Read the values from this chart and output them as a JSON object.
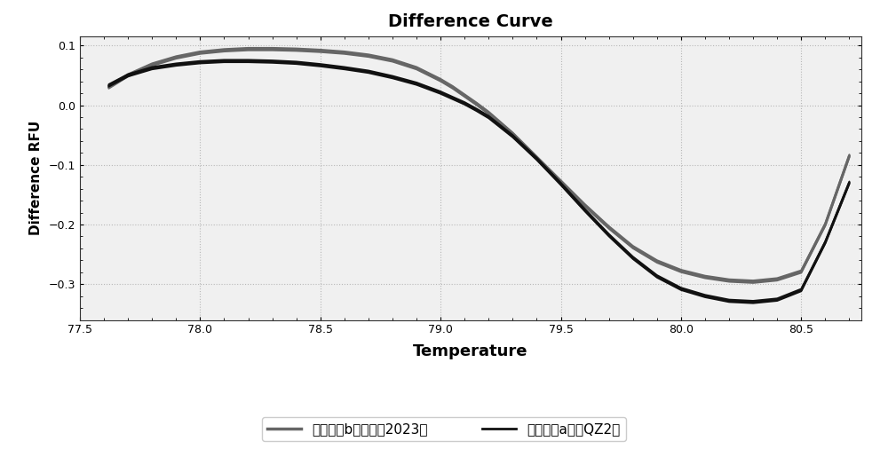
{
  "title": "Difference Curve",
  "xlabel": "Temperature",
  "ylabel": "Difference RFU",
  "xlim": [
    77.5,
    80.75
  ],
  "ylim": [
    -0.36,
    0.115
  ],
  "xticks": [
    77.5,
    78.0,
    78.5,
    79.0,
    79.5,
    80.0,
    80.5
  ],
  "yticks": [
    -0.3,
    -0.2,
    -0.1,
    0.0,
    0.1
  ],
  "background_color": "#ffffff",
  "plot_bg_color": "#f0f0f0",
  "grid_color": "#aaaaaa",
  "legend_labels": [
    "基因型为b，即郑麦2023类",
    "基因型为a，即QZ2类"
  ],
  "group_b_color": "#666666",
  "group_a_color": "#111111",
  "group_b_lines": [
    {
      "x": [
        77.62,
        77.7,
        77.8,
        77.9,
        78.0,
        78.1,
        78.2,
        78.3,
        78.4,
        78.5,
        78.6,
        78.7,
        78.8,
        78.9,
        79.0,
        79.05,
        79.1,
        79.15,
        79.2,
        79.3,
        79.4,
        79.5,
        79.6,
        79.7,
        79.8,
        79.9,
        80.0,
        80.1,
        80.2,
        80.3,
        80.4,
        80.5,
        80.6,
        80.7
      ],
      "y": [
        0.03,
        0.05,
        0.068,
        0.08,
        0.088,
        0.092,
        0.094,
        0.094,
        0.093,
        0.091,
        0.088,
        0.083,
        0.075,
        0.062,
        0.042,
        0.03,
        0.016,
        0.002,
        -0.013,
        -0.048,
        -0.088,
        -0.128,
        -0.168,
        -0.205,
        -0.238,
        -0.262,
        -0.278,
        -0.288,
        -0.294,
        -0.296,
        -0.292,
        -0.279,
        -0.2,
        -0.085
      ],
      "lw": 2.2
    },
    {
      "x": [
        77.62,
        77.7,
        77.8,
        77.9,
        78.0,
        78.1,
        78.2,
        78.3,
        78.4,
        78.5,
        78.6,
        78.7,
        78.8,
        78.9,
        79.0,
        79.05,
        79.1,
        79.15,
        79.2,
        79.3,
        79.4,
        79.5,
        79.6,
        79.7,
        79.8,
        79.9,
        80.0,
        80.1,
        80.2,
        80.3,
        80.4,
        80.5,
        80.6,
        80.7
      ],
      "y": [
        0.032,
        0.052,
        0.07,
        0.082,
        0.09,
        0.094,
        0.096,
        0.096,
        0.095,
        0.093,
        0.09,
        0.085,
        0.077,
        0.064,
        0.044,
        0.032,
        0.018,
        0.004,
        -0.011,
        -0.046,
        -0.086,
        -0.126,
        -0.166,
        -0.203,
        -0.236,
        -0.26,
        -0.276,
        -0.286,
        -0.292,
        -0.294,
        -0.29,
        -0.277,
        -0.198,
        -0.083
      ],
      "lw": 1.5
    },
    {
      "x": [
        77.62,
        77.7,
        77.8,
        77.9,
        78.0,
        78.1,
        78.2,
        78.3,
        78.4,
        78.5,
        78.6,
        78.7,
        78.8,
        78.9,
        79.0,
        79.05,
        79.1,
        79.15,
        79.2,
        79.3,
        79.4,
        79.5,
        79.6,
        79.7,
        79.8,
        79.9,
        80.0,
        80.1,
        80.2,
        80.3,
        80.4,
        80.5,
        80.6,
        80.7
      ],
      "y": [
        0.028,
        0.048,
        0.066,
        0.078,
        0.086,
        0.09,
        0.092,
        0.092,
        0.091,
        0.089,
        0.086,
        0.081,
        0.073,
        0.06,
        0.04,
        0.028,
        0.014,
        0.0,
        -0.015,
        -0.05,
        -0.09,
        -0.13,
        -0.17,
        -0.207,
        -0.24,
        -0.264,
        -0.28,
        -0.29,
        -0.296,
        -0.298,
        -0.294,
        -0.281,
        -0.202,
        -0.087
      ],
      "lw": 1.5
    }
  ],
  "group_a_lines": [
    {
      "x": [
        77.62,
        77.7,
        77.8,
        77.9,
        78.0,
        78.1,
        78.2,
        78.3,
        78.4,
        78.5,
        78.6,
        78.7,
        78.8,
        78.9,
        79.0,
        79.05,
        79.1,
        79.15,
        79.2,
        79.3,
        79.4,
        79.5,
        79.6,
        79.7,
        79.8,
        79.9,
        80.0,
        80.1,
        80.2,
        80.3,
        80.4,
        80.5,
        80.6,
        80.7
      ],
      "y": [
        0.033,
        0.05,
        0.062,
        0.068,
        0.072,
        0.074,
        0.074,
        0.073,
        0.071,
        0.067,
        0.062,
        0.056,
        0.047,
        0.036,
        0.021,
        0.012,
        0.003,
        -0.008,
        -0.02,
        -0.052,
        -0.09,
        -0.132,
        -0.176,
        -0.218,
        -0.256,
        -0.287,
        -0.308,
        -0.32,
        -0.328,
        -0.33,
        -0.326,
        -0.31,
        -0.23,
        -0.13
      ],
      "lw": 2.0
    },
    {
      "x": [
        77.62,
        77.7,
        77.8,
        77.9,
        78.0,
        78.1,
        78.2,
        78.3,
        78.4,
        78.5,
        78.6,
        78.7,
        78.8,
        78.9,
        79.0,
        79.05,
        79.1,
        79.15,
        79.2,
        79.3,
        79.4,
        79.5,
        79.6,
        79.7,
        79.8,
        79.9,
        80.0,
        80.1,
        80.2,
        80.3,
        80.4,
        80.5,
        80.6,
        80.7
      ],
      "y": [
        0.035,
        0.052,
        0.064,
        0.07,
        0.074,
        0.076,
        0.076,
        0.075,
        0.073,
        0.069,
        0.064,
        0.058,
        0.049,
        0.038,
        0.023,
        0.014,
        0.005,
        -0.006,
        -0.018,
        -0.05,
        -0.088,
        -0.13,
        -0.174,
        -0.216,
        -0.254,
        -0.285,
        -0.306,
        -0.318,
        -0.326,
        -0.328,
        -0.324,
        -0.308,
        -0.228,
        -0.128
      ],
      "lw": 1.4
    },
    {
      "x": [
        77.62,
        77.7,
        77.8,
        77.9,
        78.0,
        78.1,
        78.2,
        78.3,
        78.4,
        78.5,
        78.6,
        78.7,
        78.8,
        78.9,
        79.0,
        79.05,
        79.1,
        79.15,
        79.2,
        79.3,
        79.4,
        79.5,
        79.6,
        79.7,
        79.8,
        79.9,
        80.0,
        80.1,
        80.2,
        80.3,
        80.4,
        80.5,
        80.6,
        80.7
      ],
      "y": [
        0.031,
        0.048,
        0.06,
        0.066,
        0.07,
        0.072,
        0.072,
        0.071,
        0.069,
        0.065,
        0.06,
        0.054,
        0.045,
        0.034,
        0.019,
        0.01,
        0.001,
        -0.01,
        -0.022,
        -0.054,
        -0.092,
        -0.134,
        -0.178,
        -0.22,
        -0.258,
        -0.289,
        -0.31,
        -0.322,
        -0.33,
        -0.332,
        -0.328,
        -0.312,
        -0.232,
        -0.132
      ],
      "lw": 1.4
    }
  ]
}
